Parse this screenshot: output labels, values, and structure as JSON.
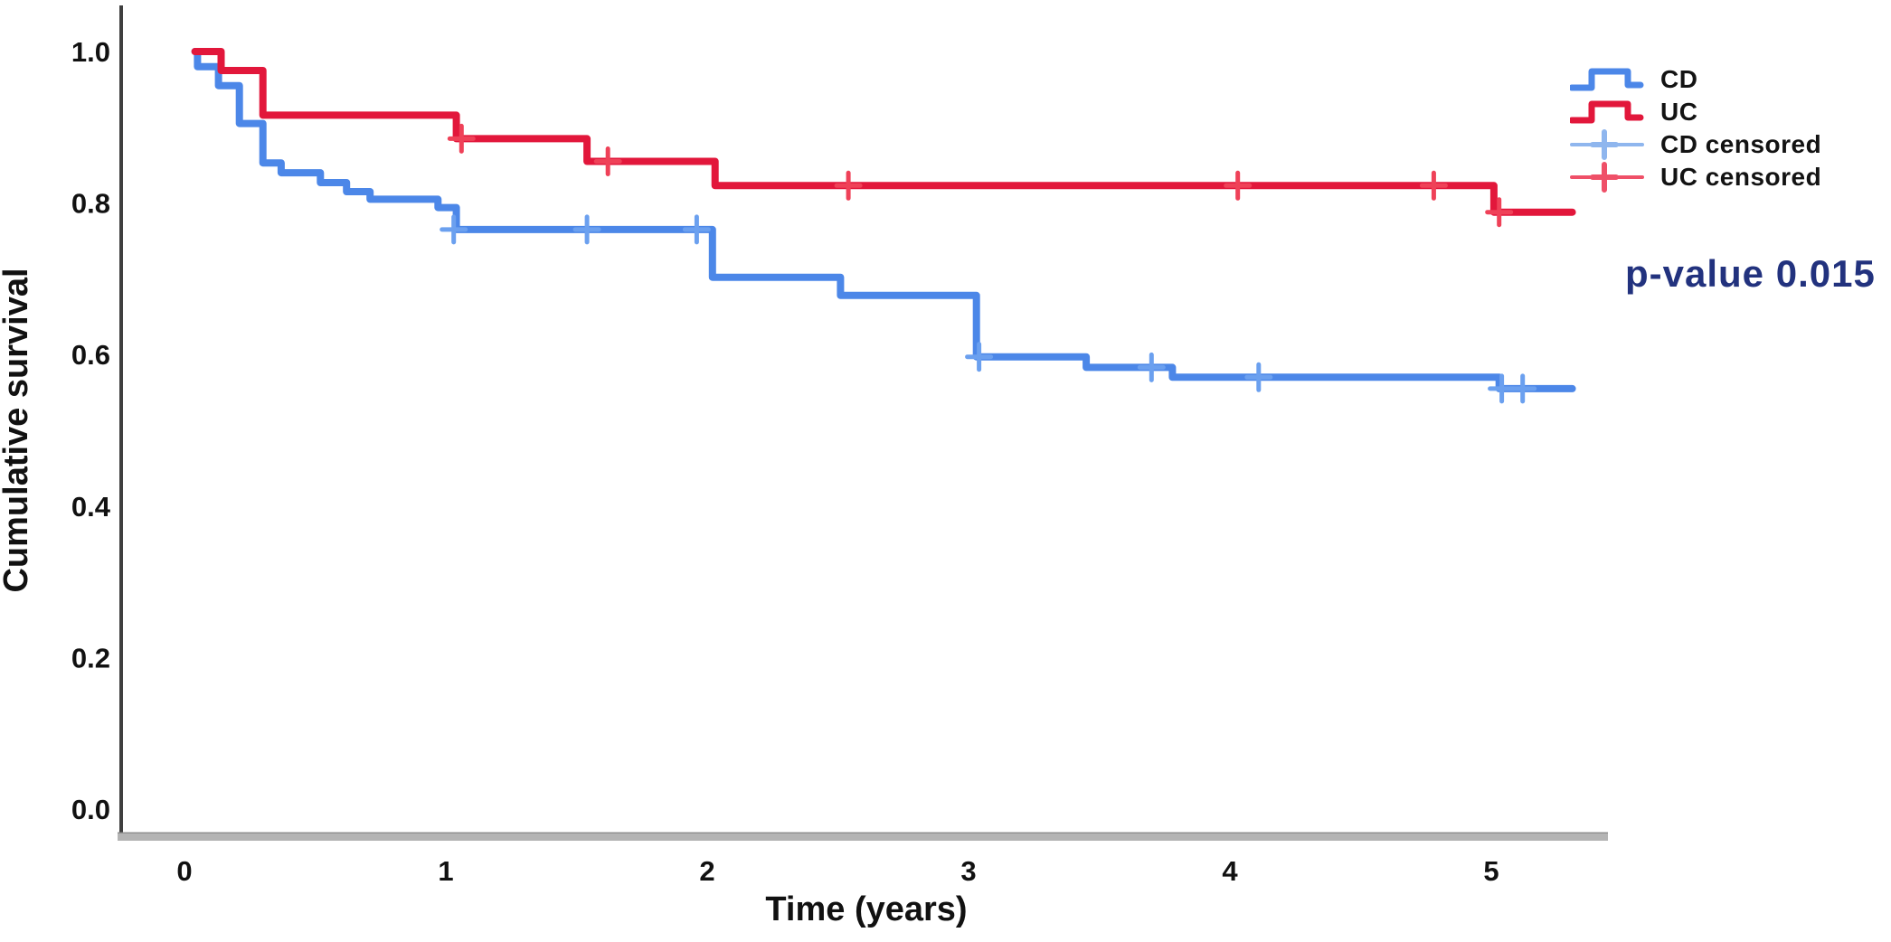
{
  "figure": {
    "y_axis": {
      "label": "Cumulative survival",
      "ticks": [
        {
          "value": 1.0,
          "label": "1.0"
        },
        {
          "value": 0.8,
          "label": "0.8"
        },
        {
          "value": 0.6,
          "label": "0.6"
        },
        {
          "value": 0.4,
          "label": "0.4"
        },
        {
          "value": 0.2,
          "label": "0.2"
        },
        {
          "value": 0.0,
          "label": "0.0"
        }
      ]
    },
    "x_axis": {
      "label": "Time (years)",
      "ticks": [
        {
          "value": 0,
          "label": "0"
        },
        {
          "value": 1,
          "label": "1"
        },
        {
          "value": 2,
          "label": "2"
        },
        {
          "value": 3,
          "label": "3"
        },
        {
          "value": 4,
          "label": "4"
        },
        {
          "value": 5,
          "label": "5"
        }
      ]
    },
    "legend": [
      {
        "label": "CD",
        "type": "step",
        "color": "#4c87e8"
      },
      {
        "label": "UC",
        "type": "step",
        "color": "#e2173b"
      },
      {
        "label": "CD censored",
        "type": "censor",
        "color": "#8fb6ee"
      },
      {
        "label": "UC censored",
        "type": "censor",
        "color": "#ef5068"
      }
    ],
    "annotation": {
      "text": "p-value 0.015",
      "color": "#22327e"
    }
  },
  "chart_data": {
    "type": "line",
    "subtype": "kaplan-meier-step",
    "title": "",
    "xlabel": "Time (years)",
    "ylabel": "Cumulative survival",
    "xlim": [
      -0.25,
      5.45
    ],
    "ylim": [
      -0.04,
      1.06
    ],
    "grid": false,
    "legend_position": "top-right",
    "x_ticks": [
      0,
      1,
      2,
      3,
      4,
      5
    ],
    "y_ticks": [
      0.0,
      0.2,
      0.4,
      0.6,
      0.8,
      1.0
    ],
    "annotation": "p-value 0.015",
    "series": [
      {
        "name": "CD",
        "color": "#4c87e8",
        "censor_color": "#6ba0ef",
        "end_x": 5.31,
        "steps": [
          [
            0.04,
            1.0
          ],
          [
            0.05,
            0.98
          ],
          [
            0.13,
            0.955
          ],
          [
            0.21,
            0.905
          ],
          [
            0.3,
            0.853
          ],
          [
            0.37,
            0.84
          ],
          [
            0.52,
            0.827
          ],
          [
            0.62,
            0.815
          ],
          [
            0.71,
            0.805
          ],
          [
            0.97,
            0.794
          ],
          [
            1.04,
            0.765
          ],
          [
            2.02,
            0.702
          ],
          [
            2.51,
            0.678
          ],
          [
            3.03,
            0.597
          ],
          [
            3.45,
            0.583
          ],
          [
            3.78,
            0.57
          ],
          [
            5.03,
            0.555
          ]
        ],
        "censored": [
          [
            1.03,
            0.765
          ],
          [
            1.54,
            0.765
          ],
          [
            1.96,
            0.765
          ],
          [
            3.04,
            0.597
          ],
          [
            3.7,
            0.583
          ],
          [
            4.11,
            0.57
          ],
          [
            5.04,
            0.555
          ],
          [
            5.12,
            0.555
          ]
        ]
      },
      {
        "name": "UC",
        "color": "#e2173b",
        "censor_color": "#ef4158",
        "end_x": 5.31,
        "steps": [
          [
            0.04,
            1.0
          ],
          [
            0.14,
            0.975
          ],
          [
            0.3,
            0.916
          ],
          [
            1.04,
            0.885
          ],
          [
            1.54,
            0.855
          ],
          [
            2.03,
            0.823
          ],
          [
            5.01,
            0.788
          ]
        ],
        "censored": [
          [
            1.06,
            0.885
          ],
          [
            1.62,
            0.855
          ],
          [
            2.54,
            0.823
          ],
          [
            4.03,
            0.823
          ],
          [
            4.78,
            0.823
          ],
          [
            5.03,
            0.788
          ]
        ]
      }
    ]
  }
}
